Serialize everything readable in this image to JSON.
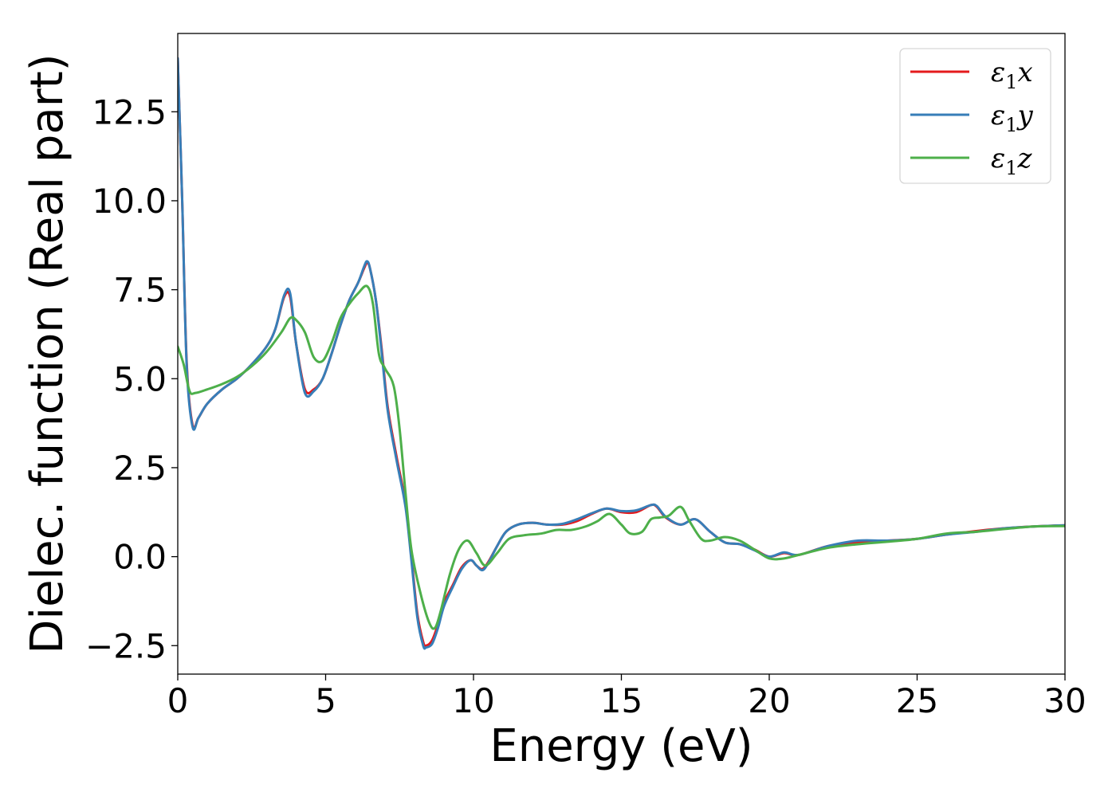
{
  "chart_data": {
    "type": "line",
    "title": "",
    "xlabel": "Energy (eV)",
    "ylabel": "Dielec. function (Real part)",
    "xlim": [
      0,
      30
    ],
    "ylim": [
      -3.3,
      14.7
    ],
    "xticks": [
      0,
      5,
      10,
      15,
      20,
      25,
      30
    ],
    "xtick_labels": [
      "0",
      "5",
      "10",
      "15",
      "20",
      "25",
      "30"
    ],
    "yticks": [
      -2.5,
      0.0,
      2.5,
      5.0,
      7.5,
      10.0,
      12.5
    ],
    "ytick_labels": [
      "−2.5",
      "0.0",
      "2.5",
      "5.0",
      "7.5",
      "10.0",
      "12.5"
    ],
    "grid": false,
    "legend_position": "top-right",
    "series": [
      {
        "name": "ε1x",
        "name_base": "ε",
        "name_sub": "1",
        "name_var": "x",
        "color": "#e41a1c",
        "x": [
          0,
          0.15,
          0.3,
          0.5,
          0.7,
          1.0,
          1.5,
          2.0,
          2.5,
          3.0,
          3.3,
          3.6,
          3.8,
          4.0,
          4.3,
          4.6,
          4.9,
          5.2,
          5.5,
          5.8,
          6.1,
          6.3,
          6.4,
          6.5,
          6.7,
          6.9,
          7.1,
          7.4,
          7.7,
          7.9,
          8.1,
          8.3,
          8.4,
          8.6,
          8.8,
          9.0,
          9.3,
          9.6,
          9.9,
          10.1,
          10.3,
          10.5,
          10.8,
          11.1,
          11.5,
          12.0,
          12.5,
          13.0,
          13.5,
          14.0,
          14.5,
          15.0,
          15.5,
          16.0,
          16.2,
          16.5,
          17.0,
          17.5,
          18.0,
          18.5,
          19.0,
          19.5,
          20.0,
          20.5,
          21.0,
          22.0,
          23.0,
          24.0,
          25.0,
          26.0,
          27.0,
          28.0,
          29.0,
          30.0
        ],
        "y": [
          14.0,
          10.0,
          5.5,
          3.7,
          3.9,
          4.3,
          4.7,
          5.0,
          5.4,
          5.9,
          6.4,
          7.3,
          7.3,
          6.0,
          4.7,
          4.7,
          5.0,
          5.7,
          6.5,
          7.2,
          7.7,
          8.1,
          8.25,
          8.1,
          7.2,
          5.8,
          4.2,
          2.8,
          1.5,
          0.0,
          -1.6,
          -2.4,
          -2.5,
          -2.35,
          -1.9,
          -1.3,
          -0.8,
          -0.3,
          -0.1,
          -0.25,
          -0.35,
          -0.15,
          0.3,
          0.7,
          0.9,
          0.95,
          0.9,
          0.9,
          1.0,
          1.2,
          1.35,
          1.25,
          1.25,
          1.45,
          1.4,
          1.1,
          0.9,
          1.05,
          0.7,
          0.4,
          0.35,
          0.2,
          0.0,
          0.1,
          0.05,
          0.3,
          0.4,
          0.45,
          0.5,
          0.62,
          0.72,
          0.8,
          0.85,
          0.88
        ]
      },
      {
        "name": "ε1y",
        "name_base": "ε",
        "name_sub": "1",
        "name_var": "y",
        "color": "#377eb8",
        "x": [
          0,
          0.15,
          0.3,
          0.5,
          0.7,
          1.0,
          1.5,
          2.0,
          2.5,
          3.0,
          3.3,
          3.6,
          3.8,
          4.0,
          4.3,
          4.6,
          4.9,
          5.2,
          5.5,
          5.8,
          6.1,
          6.3,
          6.4,
          6.5,
          6.7,
          6.9,
          7.1,
          7.4,
          7.7,
          7.9,
          8.1,
          8.3,
          8.4,
          8.6,
          8.8,
          9.0,
          9.3,
          9.6,
          9.9,
          10.1,
          10.3,
          10.5,
          10.8,
          11.1,
          11.5,
          12.0,
          12.5,
          13.0,
          13.5,
          14.0,
          14.5,
          15.0,
          15.5,
          16.0,
          16.2,
          16.5,
          17.0,
          17.5,
          18.0,
          18.5,
          19.0,
          19.5,
          20.0,
          20.5,
          21.0,
          22.0,
          23.0,
          24.0,
          25.0,
          26.0,
          27.0,
          28.0,
          29.0,
          30.0
        ],
        "y": [
          14.0,
          10.0,
          5.4,
          3.65,
          3.9,
          4.3,
          4.7,
          5.0,
          5.4,
          5.9,
          6.4,
          7.35,
          7.4,
          6.0,
          4.6,
          4.65,
          5.0,
          5.7,
          6.5,
          7.2,
          7.7,
          8.15,
          8.3,
          8.1,
          7.2,
          5.7,
          4.1,
          2.7,
          1.4,
          -0.1,
          -1.7,
          -2.5,
          -2.55,
          -2.45,
          -2.0,
          -1.4,
          -0.85,
          -0.35,
          -0.1,
          -0.25,
          -0.38,
          -0.18,
          0.3,
          0.7,
          0.9,
          0.95,
          0.9,
          0.92,
          1.05,
          1.22,
          1.35,
          1.28,
          1.3,
          1.45,
          1.42,
          1.12,
          0.9,
          1.05,
          0.7,
          0.4,
          0.35,
          0.18,
          0.0,
          0.12,
          0.05,
          0.3,
          0.45,
          0.45,
          0.5,
          0.62,
          0.7,
          0.8,
          0.85,
          0.88
        ]
      },
      {
        "name": "ε1z",
        "name_base": "ε",
        "name_sub": "1",
        "name_var": "z",
        "color": "#4daf4a",
        "x": [
          0,
          0.2,
          0.4,
          0.6,
          1.0,
          1.5,
          2.0,
          2.5,
          3.0,
          3.5,
          3.8,
          4.0,
          4.3,
          4.6,
          4.9,
          5.2,
          5.5,
          5.8,
          6.1,
          6.4,
          6.6,
          6.8,
          7.0,
          7.3,
          7.5,
          7.7,
          7.9,
          8.2,
          8.5,
          8.7,
          8.9,
          9.2,
          9.5,
          9.8,
          10.1,
          10.4,
          10.8,
          11.2,
          11.7,
          12.3,
          12.8,
          13.3,
          13.8,
          14.2,
          14.6,
          15.0,
          15.3,
          15.7,
          16.0,
          16.3,
          16.6,
          17.0,
          17.3,
          17.7,
          18.0,
          18.5,
          19.0,
          19.5,
          20.0,
          20.5,
          21.0,
          22.0,
          23.0,
          24.0,
          25.0,
          26.0,
          27.0,
          28.0,
          29.0,
          30.0
        ],
        "y": [
          5.9,
          5.4,
          4.65,
          4.6,
          4.7,
          4.85,
          5.05,
          5.35,
          5.75,
          6.3,
          6.7,
          6.65,
          6.3,
          5.6,
          5.5,
          6.0,
          6.7,
          7.1,
          7.4,
          7.6,
          7.1,
          5.7,
          5.3,
          4.8,
          3.6,
          1.8,
          0.2,
          -1.0,
          -1.85,
          -2.0,
          -1.5,
          -0.5,
          0.2,
          0.45,
          0.1,
          -0.25,
          0.1,
          0.5,
          0.6,
          0.65,
          0.75,
          0.75,
          0.85,
          1.0,
          1.2,
          0.9,
          0.65,
          0.7,
          1.05,
          1.1,
          1.15,
          1.4,
          1.0,
          0.5,
          0.45,
          0.55,
          0.45,
          0.2,
          -0.05,
          -0.05,
          0.05,
          0.25,
          0.35,
          0.42,
          0.5,
          0.65,
          0.7,
          0.78,
          0.85,
          0.86
        ]
      }
    ]
  }
}
